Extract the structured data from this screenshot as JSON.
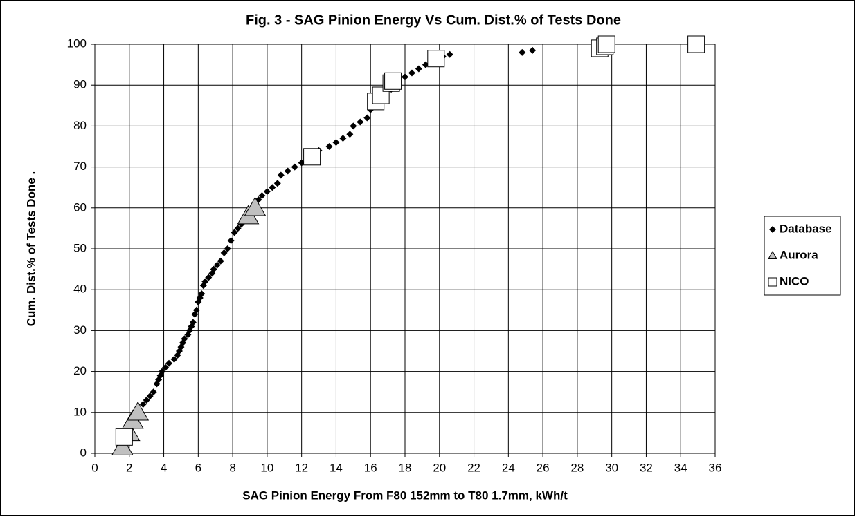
{
  "chart_data": {
    "type": "scatter",
    "title": "Fig. 3 - SAG Pinion Energy Vs Cum. Dist.% of Tests Done",
    "x_label": "SAG Pinion Energy From F80 152mm to T80 1.7mm, kWh/t",
    "y_label": "Cum. Dist.% of Tests Done .",
    "xlim": [
      0,
      36
    ],
    "xticks": [
      0,
      2,
      4,
      6,
      8,
      10,
      12,
      14,
      16,
      18,
      20,
      22,
      24,
      26,
      28,
      30,
      32,
      34,
      36
    ],
    "ylim": [
      0,
      100
    ],
    "yticks": [
      0,
      10,
      20,
      30,
      40,
      50,
      60,
      70,
      80,
      90,
      100
    ],
    "grid": true,
    "legend": "right",
    "series": [
      {
        "name": "Database",
        "color": "#000000",
        "marker": "diamond",
        "x": [
          1.6,
          1.8,
          2.0,
          2.2,
          2.5,
          2.8,
          3.0,
          3.2,
          3.4,
          3.6,
          3.7,
          3.8,
          3.9,
          4.1,
          4.3,
          4.6,
          4.8,
          4.9,
          5.0,
          5.1,
          5.2,
          5.4,
          5.5,
          5.6,
          5.7,
          5.8,
          5.9,
          6.0,
          6.1,
          6.2,
          6.3,
          6.4,
          6.6,
          6.8,
          6.9,
          7.1,
          7.3,
          7.5,
          7.7,
          7.9,
          8.1,
          8.3,
          8.5,
          8.8,
          9.0,
          9.3,
          9.5,
          9.7,
          10.0,
          10.3,
          10.6,
          10.8,
          11.2,
          11.6,
          12.0,
          12.6,
          13.0,
          13.6,
          14.0,
          14.4,
          14.8,
          15.0,
          15.4,
          15.8,
          16.0,
          16.4,
          16.8,
          17.2,
          17.6,
          18.0,
          18.4,
          18.8,
          19.2,
          19.6,
          20.2,
          20.6,
          24.8,
          25.4
        ],
        "values": [
          2,
          4,
          6,
          8,
          10,
          12,
          13,
          14,
          15,
          17,
          18,
          19,
          20,
          21,
          22,
          23,
          24,
          25,
          26,
          27,
          28,
          29,
          30,
          31,
          32,
          34,
          35,
          37,
          38,
          39,
          41,
          42,
          43,
          44,
          45,
          46,
          47,
          49,
          50,
          52,
          54,
          55,
          56,
          58,
          59,
          60,
          62,
          63,
          64,
          65,
          66,
          68,
          69,
          70,
          71,
          72,
          74,
          75,
          76,
          77,
          78,
          80,
          81,
          82,
          84,
          85,
          87,
          89,
          91,
          92,
          93,
          94,
          95,
          96,
          97,
          97.5,
          98,
          98.5
        ]
      },
      {
        "name": "Aurora",
        "color": "#c0c0c0",
        "marker": "triangle",
        "x": [
          1.6,
          2.0,
          2.2,
          2.5,
          8.9,
          9.3
        ],
        "values": [
          1.5,
          5,
          8,
          10,
          58,
          60
        ]
      },
      {
        "name": "NICO",
        "color": "#ffffff",
        "marker": "square",
        "x": [
          1.7,
          12.6,
          16.3,
          16.6,
          17.2,
          17.3,
          19.8,
          29.3,
          29.6,
          29.7,
          34.9
        ],
        "values": [
          4,
          72.5,
          86,
          87.5,
          90.5,
          91,
          96.5,
          99,
          99.5,
          100,
          100
        ]
      }
    ]
  }
}
